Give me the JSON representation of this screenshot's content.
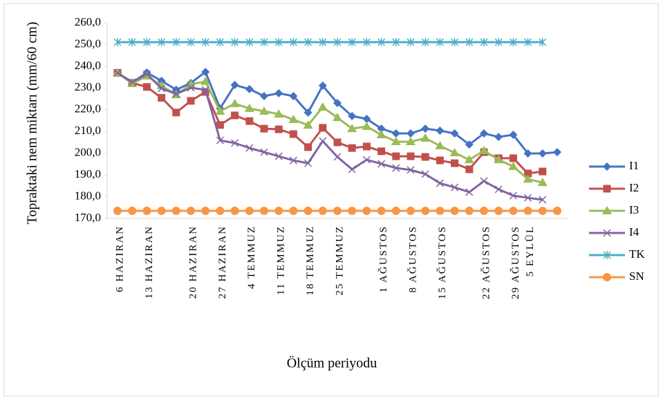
{
  "chart_data": {
    "type": "line",
    "x_label": "Ölçüm periyodu",
    "y_label": "Topraktaki nem miktarı (mm/60 cm)",
    "categories": [
      "6 HAZIRAN",
      null,
      "13 HAZIRAN",
      null,
      null,
      "20 HAZIRAN",
      null,
      "27 HAZIRAN",
      null,
      "4 TEMMUZ",
      null,
      "11 TEMMUZ",
      null,
      "18 TEMMUZ",
      null,
      "25 TEMMUZ",
      null,
      null,
      "1 AĞUSTOS",
      null,
      "8 AĞUSTOS",
      null,
      "15 AĞUSTOS",
      null,
      null,
      "22 AĞUSTOS",
      null,
      "29 AĞUSTOS",
      "5 EYLÜL",
      null,
      null
    ],
    "ylim": [
      170,
      260
    ],
    "yticks": [
      {
        "value": 170,
        "label": "170,0"
      },
      {
        "value": 180,
        "label": "180,0"
      },
      {
        "value": 190,
        "label": "190,0"
      },
      {
        "value": 200,
        "label": "200,0"
      },
      {
        "value": 210,
        "label": "210,0"
      },
      {
        "value": 220,
        "label": "220,0"
      },
      {
        "value": 230,
        "label": "230,0"
      },
      {
        "value": 240,
        "label": "240,0"
      },
      {
        "value": 250,
        "label": "250,0"
      },
      {
        "value": 260,
        "label": "260,0"
      }
    ],
    "legend": "right",
    "series": [
      {
        "name": "I1",
        "color": "#4472c4",
        "marker": "diamond",
        "values": [
          237,
          232.5,
          237.1,
          233.3,
          229.2,
          232.3,
          237.4,
          220.6,
          231.4,
          229.5,
          226.3,
          227.6,
          226.3,
          218.7,
          231.1,
          223.1,
          217.1,
          215.8,
          211.3,
          209.1,
          209.1,
          211.3,
          210.4,
          209.1,
          204,
          209.1,
          207.5,
          208.5,
          199.9,
          199.9,
          200.5
        ]
      },
      {
        "name": "I2",
        "color": "#c0504d",
        "marker": "square",
        "values": [
          237,
          232.3,
          230.5,
          225.5,
          218.7,
          224.1,
          228.2,
          213,
          217.4,
          214.8,
          211.3,
          211,
          208.8,
          202.8,
          211.7,
          205,
          202.4,
          203.1,
          200.9,
          198.6,
          198.6,
          198.3,
          196.7,
          195.4,
          192.6,
          200.5,
          197.7,
          197.7,
          190.7,
          191.6,
          null
        ]
      },
      {
        "name": "I3",
        "color": "#9bbb59",
        "marker": "triangle",
        "values": [
          237,
          232,
          235.5,
          231.1,
          226.9,
          231.7,
          233,
          219.3,
          222.8,
          220.6,
          219.3,
          218,
          215.5,
          212.9,
          221.2,
          216.4,
          211.3,
          212.3,
          208.5,
          205.3,
          205.3,
          206.9,
          203.4,
          200.2,
          197,
          201.2,
          197,
          193.9,
          188.1,
          186.5,
          null
        ]
      },
      {
        "name": "I4",
        "color": "#8064a2",
        "marker": "x",
        "values": [
          237,
          232.7,
          236.5,
          229.8,
          227.3,
          230.1,
          229.2,
          205.9,
          204.7,
          202.4,
          200.5,
          198.6,
          196.7,
          195.4,
          205.6,
          198.3,
          192.6,
          197,
          195.1,
          193.2,
          192.3,
          190.4,
          186.2,
          184.3,
          182.1,
          187.2,
          183.4,
          180.5,
          179.5,
          178.6,
          null
        ]
      },
      {
        "name": "TK",
        "color": "#4bacc6",
        "marker": "star",
        "values": [
          251.1,
          251.1,
          251.1,
          251.1,
          251.1,
          251.1,
          251.1,
          251.1,
          251.1,
          251.1,
          251.1,
          251.1,
          251.1,
          251.1,
          251.1,
          251.1,
          251.1,
          251.1,
          251.1,
          251.1,
          251.1,
          251.1,
          251.1,
          251.1,
          251.1,
          251.1,
          251.1,
          251.1,
          251.1,
          251.1,
          null
        ]
      },
      {
        "name": "SN",
        "color": "#f79646",
        "marker": "circle",
        "values": [
          173.5,
          173.5,
          173.5,
          173.5,
          173.5,
          173.5,
          173.5,
          173.5,
          173.5,
          173.5,
          173.5,
          173.5,
          173.5,
          173.5,
          173.5,
          173.5,
          173.5,
          173.5,
          173.5,
          173.5,
          173.5,
          173.5,
          173.5,
          173.5,
          173.5,
          173.5,
          173.5,
          173.5,
          173.5,
          173.5,
          173.5
        ]
      }
    ]
  }
}
